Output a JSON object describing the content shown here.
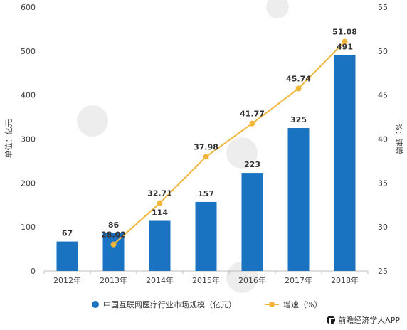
{
  "chart_data": {
    "type": "bar",
    "categories": [
      "2012年",
      "2013年",
      "2014年",
      "2015年",
      "2016年",
      "2017年",
      "2018年"
    ],
    "series": [
      {
        "name": "中国互联网医疗行业市场规模（亿元）",
        "type": "bar",
        "axis": "left",
        "values": [
          67,
          86,
          114,
          157,
          223,
          325,
          491
        ],
        "color": "#1a73c1"
      },
      {
        "name": "增速（%）",
        "type": "line",
        "axis": "right",
        "values": [
          null,
          28.02,
          32.71,
          37.98,
          41.77,
          45.74,
          51.08
        ],
        "color": "#f0b53a"
      }
    ],
    "ylabel": "单位：亿元",
    "ylabel_right": "%：速增",
    "ylim": [
      0,
      600
    ],
    "ylim_right": [
      25,
      55
    ],
    "yticks": [
      0,
      100,
      200,
      300,
      400,
      500,
      600
    ],
    "yticks_right": [
      25,
      30,
      35,
      40,
      45,
      50,
      55
    ],
    "grid": false,
    "legend_position": "bottom"
  },
  "footer": {
    "text": "前瞻经济学人APP"
  }
}
